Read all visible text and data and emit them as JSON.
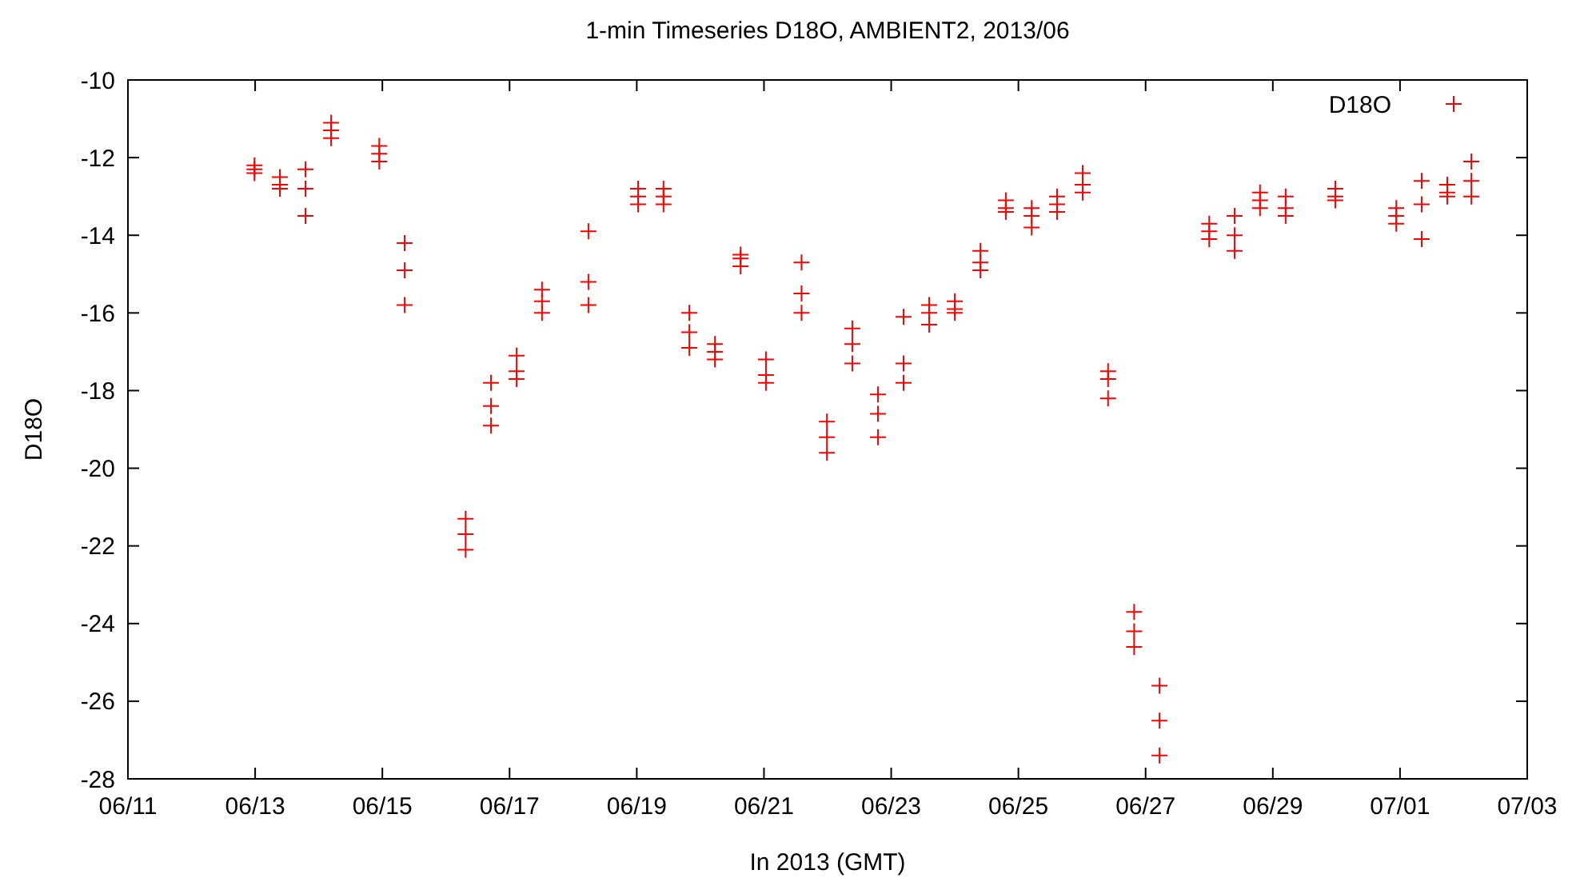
{
  "chart_data": {
    "type": "scatter",
    "title": "1-min Timeseries D18O, AMBIENT2, 2013/06",
    "xlabel": "In 2013 (GMT)",
    "ylabel": "D18O",
    "x": [
      "2013-06-12T23:45",
      "2013-06-12T23:45",
      "2013-06-12T23:45",
      "2013-06-13T09:20",
      "2013-06-13T09:20",
      "2013-06-13T09:20",
      "2013-06-13T19:00",
      "2013-06-13T19:00",
      "2013-06-13T19:00",
      "2013-06-14T04:40",
      "2013-06-14T04:40",
      "2013-06-14T04:40",
      "2013-06-14T22:50",
      "2013-06-14T22:50",
      "2013-06-14T22:50",
      "2013-06-15T08:25",
      "2013-06-15T08:25",
      "2013-06-15T08:25",
      "2013-06-16T07:25",
      "2013-06-16T07:25",
      "2013-06-16T07:25",
      "2013-06-16T17:00",
      "2013-06-16T17:00",
      "2013-06-16T17:00",
      "2013-06-17T02:40",
      "2013-06-17T02:40",
      "2013-06-17T02:40",
      "2013-06-17T12:15",
      "2013-06-17T12:15",
      "2013-06-17T12:15",
      "2013-06-18T05:45",
      "2013-06-18T05:45",
      "2013-06-18T05:45",
      "2013-06-19T00:30",
      "2013-06-19T00:30",
      "2013-06-19T00:30",
      "2013-06-19T10:05",
      "2013-06-19T10:05",
      "2013-06-19T10:05",
      "2013-06-19T19:50",
      "2013-06-19T19:50",
      "2013-06-19T19:50",
      "2013-06-20T05:30",
      "2013-06-20T05:30",
      "2013-06-20T05:30",
      "2013-06-20T15:10",
      "2013-06-20T15:10",
      "2013-06-20T15:10",
      "2013-06-21T00:45",
      "2013-06-21T00:45",
      "2013-06-21T00:45",
      "2013-06-21T14:10",
      "2013-06-21T14:10",
      "2013-06-21T14:10",
      "2013-06-21T23:45",
      "2013-06-21T23:45",
      "2013-06-21T23:45",
      "2013-06-22T09:20",
      "2013-06-22T09:20",
      "2013-06-22T09:20",
      "2013-06-22T19:00",
      "2013-06-22T19:00",
      "2013-06-22T19:00",
      "2013-06-23T04:40",
      "2013-06-23T04:40",
      "2013-06-23T04:40",
      "2013-06-23T14:20",
      "2013-06-23T14:20",
      "2013-06-23T14:20",
      "2013-06-24T00:00",
      "2013-06-24T00:00",
      "2013-06-24T00:00",
      "2013-06-24T09:40",
      "2013-06-24T09:40",
      "2013-06-24T09:40",
      "2013-06-24T19:15",
      "2013-06-24T19:15",
      "2013-06-24T19:15",
      "2013-06-25T05:00",
      "2013-06-25T05:00",
      "2013-06-25T05:00",
      "2013-06-25T14:35",
      "2013-06-25T14:35",
      "2013-06-25T14:35",
      "2013-06-26T00:15",
      "2013-06-26T00:15",
      "2013-06-26T00:15",
      "2013-06-26T09:50",
      "2013-06-26T09:50",
      "2013-06-26T09:50",
      "2013-06-26T19:40",
      "2013-06-26T19:40",
      "2013-06-26T19:40",
      "2013-06-27T05:15",
      "2013-06-27T05:15",
      "2013-06-27T05:15",
      "2013-06-28T00:00",
      "2013-06-28T00:00",
      "2013-06-28T00:00",
      "2013-06-28T09:35",
      "2013-06-28T09:35",
      "2013-06-28T09:35",
      "2013-06-28T19:10",
      "2013-06-28T19:10",
      "2013-06-28T19:10",
      "2013-06-29T04:50",
      "2013-06-29T04:50",
      "2013-06-29T04:50",
      "2013-06-29T23:35",
      "2013-06-29T23:35",
      "2013-06-29T23:35",
      "2013-06-30T22:35",
      "2013-06-30T22:35",
      "2013-06-30T22:35",
      "2013-07-01T08:10",
      "2013-07-01T08:10",
      "2013-07-01T08:10",
      "2013-07-01T17:50",
      "2013-07-01T17:50",
      "2013-07-01T17:50",
      "2013-07-02T02:55",
      "2013-07-02T02:55",
      "2013-07-02T02:55"
    ],
    "series": [
      {
        "name": "D18O",
        "color": "#ff0000",
        "values": [
          -12.2,
          -12.3,
          -12.4,
          -12.5,
          -12.7,
          -12.8,
          -12.3,
          -12.8,
          -13.5,
          -11.1,
          -11.3,
          -11.5,
          -11.7,
          -11.9,
          -12.1,
          -14.2,
          -14.9,
          -15.8,
          -21.3,
          -21.7,
          -22.1,
          -17.8,
          -18.4,
          -18.9,
          -17.1,
          -17.5,
          -17.7,
          -15.4,
          -15.7,
          -16.0,
          -13.9,
          -15.2,
          -15.8,
          -12.8,
          -13.0,
          -13.2,
          -12.8,
          -13.0,
          -13.2,
          -16.0,
          -16.5,
          -16.9,
          -16.8,
          -17.0,
          -17.2,
          -14.5,
          -14.6,
          -14.8,
          -17.2,
          -17.6,
          -17.8,
          -14.7,
          -15.5,
          -16.0,
          -18.8,
          -19.2,
          -19.6,
          -16.4,
          -16.8,
          -17.3,
          -18.1,
          -18.6,
          -19.2,
          -16.1,
          -17.3,
          -17.8,
          -15.8,
          -16.0,
          -16.3,
          -15.7,
          -15.9,
          -16.0,
          -14.4,
          -14.7,
          -14.9,
          -13.1,
          -13.3,
          -13.4,
          -13.3,
          -13.5,
          -13.8,
          -13.0,
          -13.2,
          -13.4,
          -12.4,
          -12.7,
          -12.9,
          -17.5,
          -17.7,
          -18.2,
          -23.7,
          -24.2,
          -24.6,
          -25.6,
          -26.5,
          -27.4,
          -13.7,
          -13.9,
          -14.1,
          -13.5,
          -14.0,
          -14.4,
          -12.9,
          -13.1,
          -13.3,
          -13.0,
          -13.3,
          -13.5,
          -12.8,
          -13.0,
          -13.1,
          -13.3,
          -13.5,
          -13.7,
          -12.6,
          -13.2,
          -14.1,
          -12.7,
          -12.9,
          -13.0,
          -12.1,
          -12.6,
          -13.0
        ]
      }
    ],
    "xlim": [
      "2013-06-11",
      "2013-07-03"
    ],
    "xticks": [
      {
        "value": "2013-06-11",
        "label": "06/11"
      },
      {
        "value": "2013-06-13",
        "label": "06/13"
      },
      {
        "value": "2013-06-15",
        "label": "06/15"
      },
      {
        "value": "2013-06-17",
        "label": "06/17"
      },
      {
        "value": "2013-06-19",
        "label": "06/19"
      },
      {
        "value": "2013-06-21",
        "label": "06/21"
      },
      {
        "value": "2013-06-23",
        "label": "06/23"
      },
      {
        "value": "2013-06-25",
        "label": "06/25"
      },
      {
        "value": "2013-06-27",
        "label": "06/27"
      },
      {
        "value": "2013-06-29",
        "label": "06/29"
      },
      {
        "value": "2013-07-01",
        "label": "07/01"
      },
      {
        "value": "2013-07-03",
        "label": "07/03"
      }
    ],
    "ylim": [
      -28,
      -10
    ],
    "yticks": [
      -28,
      -26,
      -24,
      -22,
      -20,
      -18,
      -16,
      -14,
      -12,
      -10
    ],
    "grid": false,
    "legend": "top right",
    "marker": "cross"
  }
}
